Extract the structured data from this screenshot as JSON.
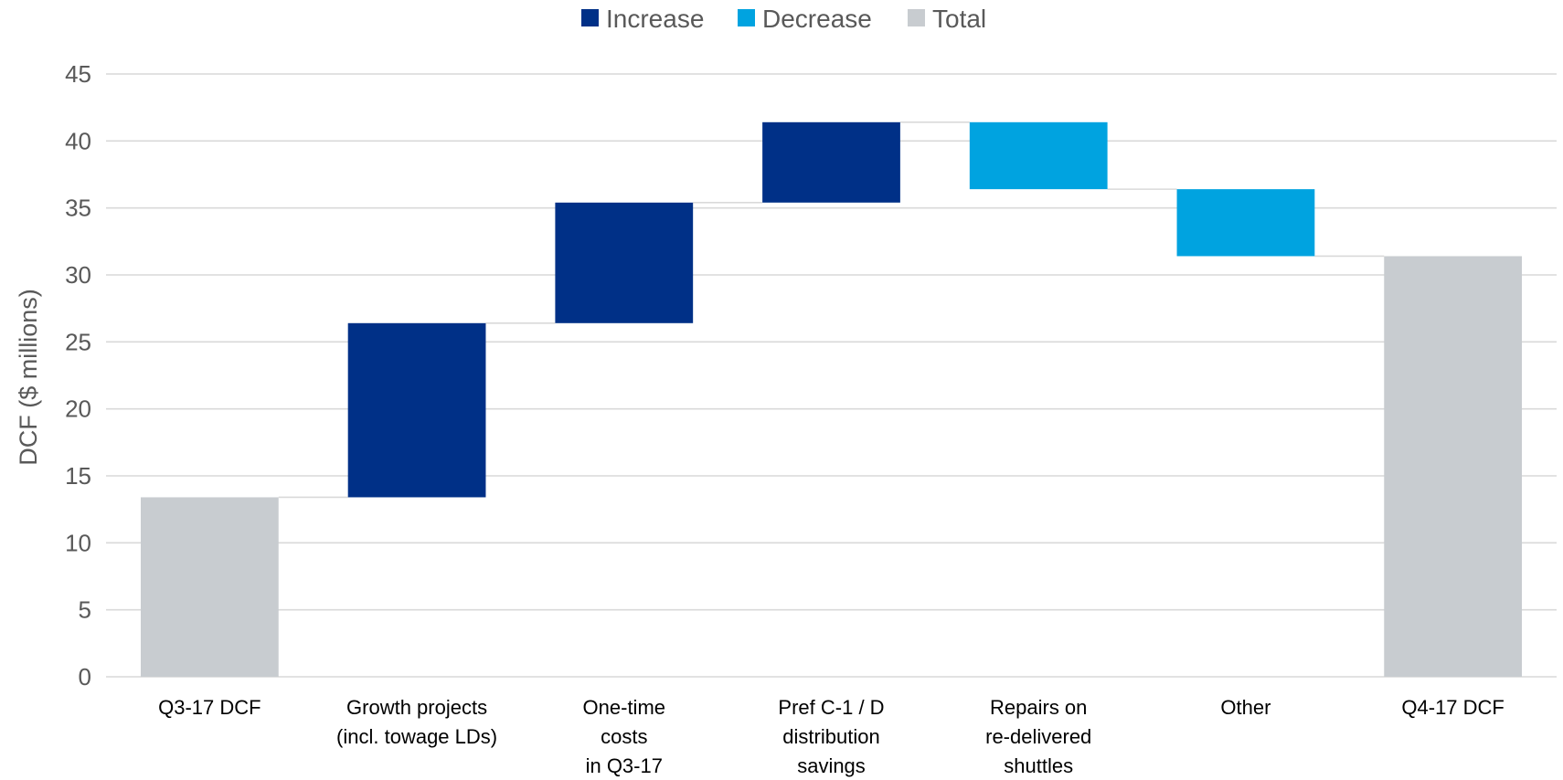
{
  "chart_data": {
    "type": "bar",
    "subtype": "waterfall",
    "title": "",
    "xlabel": "",
    "ylabel": "DCF ($ millions)",
    "ylim": [
      0,
      45
    ],
    "yticks": [
      0,
      5,
      10,
      15,
      20,
      25,
      30,
      35,
      40,
      45
    ],
    "grid": true,
    "legend_placement": "top-center",
    "legend": [
      {
        "name": "Increase",
        "color": "#003087"
      },
      {
        "name": "Decrease",
        "color": "#00A3E0"
      },
      {
        "name": "Total",
        "color": "#C8CCD0"
      }
    ],
    "categories": [
      [
        "Q3-17 DCF"
      ],
      [
        "Growth projects",
        "(incl. towage LDs)"
      ],
      [
        "One-time",
        "costs",
        "in Q3-17"
      ],
      [
        "Pref C-1 / D",
        "distribution",
        "savings"
      ],
      [
        "Repairs on",
        "re-delivered",
        "shuttles"
      ],
      [
        "Other"
      ],
      [
        "Q4-17 DCF"
      ]
    ],
    "bars": [
      {
        "kind": "total",
        "start": 0,
        "end": 13.4
      },
      {
        "kind": "increase",
        "start": 13.4,
        "end": 26.4
      },
      {
        "kind": "increase",
        "start": 26.4,
        "end": 35.4
      },
      {
        "kind": "increase",
        "start": 35.4,
        "end": 41.4
      },
      {
        "kind": "decrease",
        "start": 41.4,
        "end": 36.4
      },
      {
        "kind": "decrease",
        "start": 36.4,
        "end": 31.4
      },
      {
        "kind": "total",
        "start": 0,
        "end": 31.4
      }
    ],
    "colors": {
      "increase": "#003087",
      "decrease": "#00A3E0",
      "total": "#C8CCD0",
      "grid": "#D9D9D9",
      "connector": "#D9D9D9"
    }
  }
}
